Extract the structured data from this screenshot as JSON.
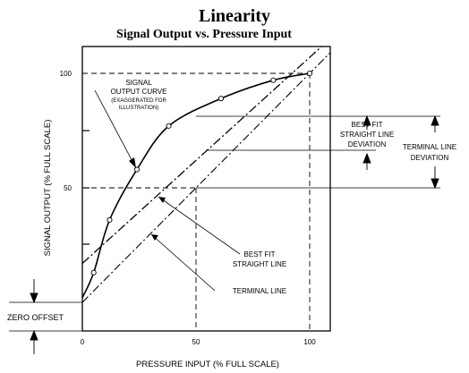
{
  "title": "Linearity",
  "subtitle": "Signal Output vs. Pressure Input",
  "axes": {
    "x_label": "PRESSURE INPUT (% FULL SCALE)",
    "y_label": "SIGNAL OUTPUT (% FULL SCALE)",
    "x_ticks": [
      "0",
      "50",
      "100"
    ],
    "y_ticks": [
      "50",
      "100"
    ]
  },
  "annotations": {
    "curve_label": [
      "SIGNAL",
      "OUTPUT CURVE"
    ],
    "curve_note": [
      "(EXAGGERATED FOR",
      "ILLUSTRATION)"
    ],
    "best_fit_deviation": [
      "BEST FIT",
      "STRAIGHT LINE",
      "DEVIATION"
    ],
    "terminal_deviation": [
      "TERMINAL LINE",
      "DEVIATION"
    ],
    "best_fit_line": [
      "BEST FIT",
      "STRAIGHT LINE"
    ],
    "terminal_line": "TERMINAL LINE",
    "zero_offset": "ZERO OFFSET"
  },
  "chart_data": {
    "type": "line",
    "xlim": [
      0,
      100
    ],
    "ylim": [
      0,
      100
    ],
    "series": [
      {
        "x": [
          0,
          5,
          12,
          24,
          38,
          61,
          84,
          100
        ],
        "y": [
          2,
          13,
          36,
          58,
          77,
          89,
          97,
          100
        ]
      },
      {
        "x": [
          0,
          100
        ],
        "y": [
          0,
          100
        ]
      },
      {
        "x": [
          0,
          100
        ],
        "y": [
          17,
          107
        ]
      }
    ]
  }
}
